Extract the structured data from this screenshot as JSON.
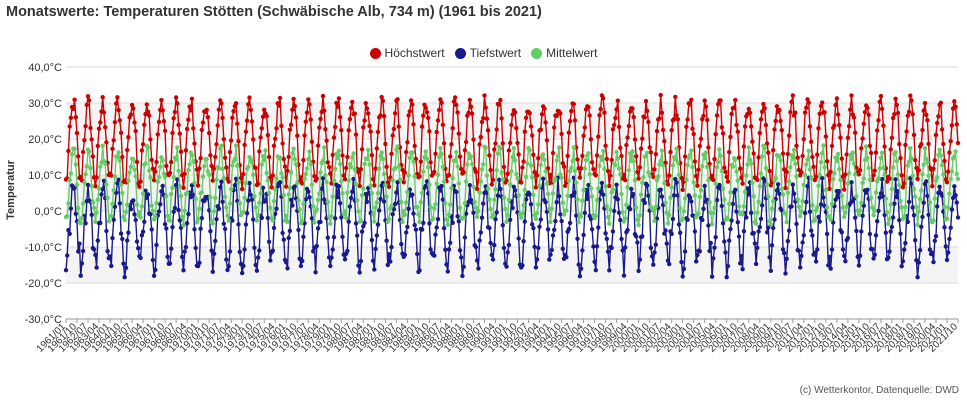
{
  "title": "Monatswerte: Temperaturen Stötten (Schwäbische Alb, 734 m) (1961 bis 2021)",
  "credit": "(c) Wetterkontor, Datenquelle: DWD",
  "chart_data": {
    "type": "line",
    "title": "Monatswerte: Temperaturen Stötten (Schwäbische Alb, 734 m) (1961 bis 2021)",
    "ylabel": "Temperatur",
    "xlabel": "",
    "ylim": [
      -30,
      40
    ],
    "yticks": [
      "40,0°C",
      "30,0°C",
      "20,0°C",
      "10,0°C",
      "0,0°C",
      "-10,0°C",
      "-20,0°C",
      "-30,0°C"
    ],
    "ytick_values": [
      40,
      30,
      20,
      10,
      0,
      -10,
      -20,
      -30
    ],
    "x_start": "1961/01",
    "x_end": "2021/10",
    "x_tick_step_months": 9,
    "x_ticks": [
      "1961/01",
      "1961/10",
      "1962/07",
      "1963/04",
      "1964/01",
      "1964/10",
      "1965/07",
      "1966/04",
      "1967/01",
      "1967/10",
      "1968/07",
      "1969/04",
      "1970/01",
      "1970/10",
      "1971/07",
      "1972/04",
      "1973/01",
      "1973/10",
      "1974/07",
      "1975/04",
      "1976/01",
      "1976/10",
      "1977/07",
      "1978/04",
      "1979/01",
      "1979/10",
      "1980/07",
      "1981/04",
      "1982/01",
      "1982/10",
      "1983/07",
      "1984/04",
      "1985/01",
      "1985/10",
      "1986/07",
      "1987/04",
      "1988/01",
      "1988/10",
      "1989/07",
      "1990/04",
      "1991/01",
      "1991/10",
      "1992/07",
      "1993/04",
      "1994/01",
      "1994/10",
      "1995/07",
      "1996/04",
      "1997/01",
      "1997/10",
      "1998/07",
      "1999/04",
      "2000/01",
      "2000/10",
      "2001/07",
      "2002/04",
      "2003/01",
      "2003/10",
      "2004/07",
      "2005/04",
      "2006/01",
      "2006/10",
      "2007/07",
      "2008/04",
      "2009/01",
      "2009/10",
      "2010/07",
      "2011/04",
      "2012/01",
      "2012/10",
      "2013/07",
      "2014/04",
      "2015/01",
      "2015/10",
      "2016/07",
      "2017/04",
      "2018/01",
      "2018/10",
      "2019/07",
      "2020/04",
      "2021/01",
      "2021/10"
    ],
    "grid": true,
    "legend_position": "top-center",
    "series": [
      {
        "name": "Höchstwert",
        "color": "#cc0000",
        "monthly_pattern": [
          8,
          10,
          16,
          21,
          25,
          28,
          30,
          29,
          25,
          20,
          14,
          10
        ]
      },
      {
        "name": "Tiefstwert",
        "color": "#1a1a8c",
        "monthly_pattern": [
          -15,
          -13,
          -8,
          -4,
          0,
          4,
          6,
          6,
          2,
          -3,
          -8,
          -12
        ]
      },
      {
        "name": "Mittelwert",
        "color": "#66cc66",
        "monthly_pattern": [
          -2,
          -1,
          3,
          7,
          11,
          14,
          16,
          16,
          12,
          8,
          3,
          -1
        ]
      }
    ]
  }
}
